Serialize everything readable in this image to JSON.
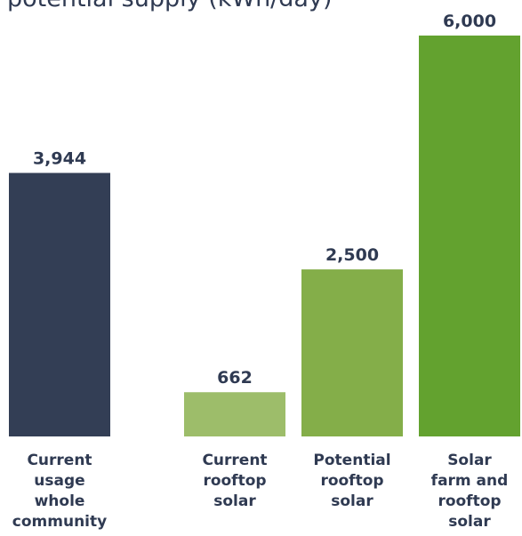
{
  "chart_data": {
    "type": "bar",
    "title": "potential supply (kWh/day)",
    "categories": [
      [
        "Current",
        "usage",
        "whole",
        "community"
      ],
      [
        "Current",
        "rooftop",
        "solar"
      ],
      [
        "Potential",
        "rooftop",
        "solar"
      ],
      [
        "Solar",
        "farm and",
        "rooftop",
        "solar"
      ]
    ],
    "values": [
      3944,
      662,
      2500,
      6000
    ],
    "value_labels": [
      "3,944",
      "662",
      "2,500",
      "6,000"
    ],
    "bar_colors": [
      "#333e55",
      "#9dbd6a",
      "#84ae49",
      "#63a22f"
    ],
    "ylim": [
      0,
      6000
    ],
    "grid": false,
    "xlabel": "",
    "ylabel": ""
  }
}
